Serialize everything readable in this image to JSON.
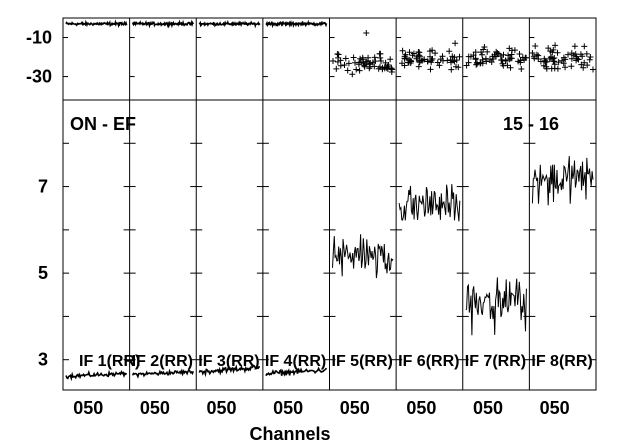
{
  "chart_data": {
    "type": "line",
    "panel_labels": {
      "left": "ON - EF",
      "right": "15 - 16"
    },
    "xlabel": "Channels",
    "top_panel": {
      "type": "scatter",
      "yticks": [
        -10,
        -30
      ],
      "ylim": [
        -42,
        0
      ]
    },
    "bottom_panel": {
      "yticks": [
        3,
        5,
        7
      ],
      "ylim": [
        2.3,
        9.0
      ]
    },
    "subpanels": [
      {
        "if_label": "IF 1(RR)",
        "x_tick": "050",
        "phase_center": -3.0,
        "amplitude_level": 2.62,
        "amplitude_noise": 0.04,
        "amplitude_trend": 0.06
      },
      {
        "if_label": "IF 2(RR)",
        "x_tick": "050",
        "phase_center": -3.0,
        "amplitude_level": 2.66,
        "amplitude_noise": 0.04,
        "amplitude_trend": 0.06
      },
      {
        "if_label": "IF 3(RR)",
        "x_tick": "050",
        "phase_center": -3.0,
        "amplitude_level": 2.72,
        "amplitude_noise": 0.05,
        "amplitude_trend": 0.1
      },
      {
        "if_label": "IF 4(RR)",
        "x_tick": "050",
        "phase_center": -3.0,
        "amplitude_level": 2.68,
        "amplitude_noise": 0.05,
        "amplitude_trend": 0.08
      },
      {
        "if_label": "IF 5(RR)",
        "x_tick": "050",
        "phase_center": -24.0,
        "amplitude_level": 5.4,
        "amplitude_noise": 0.35,
        "amplitude_trend": 0
      },
      {
        "if_label": "IF 6(RR)",
        "x_tick": "050",
        "phase_center": -21.0,
        "amplitude_level": 6.6,
        "amplitude_noise": 0.35,
        "amplitude_trend": 0
      },
      {
        "if_label": "IF 7(RR)",
        "x_tick": "050",
        "phase_center": -21.0,
        "amplitude_level": 4.4,
        "amplitude_noise": 0.35,
        "amplitude_trend": 0
      },
      {
        "if_label": "IF 8(RR)",
        "x_tick": "050",
        "phase_center": -21.0,
        "amplitude_level": 7.2,
        "amplitude_noise": 0.4,
        "amplitude_trend": 0
      }
    ]
  }
}
